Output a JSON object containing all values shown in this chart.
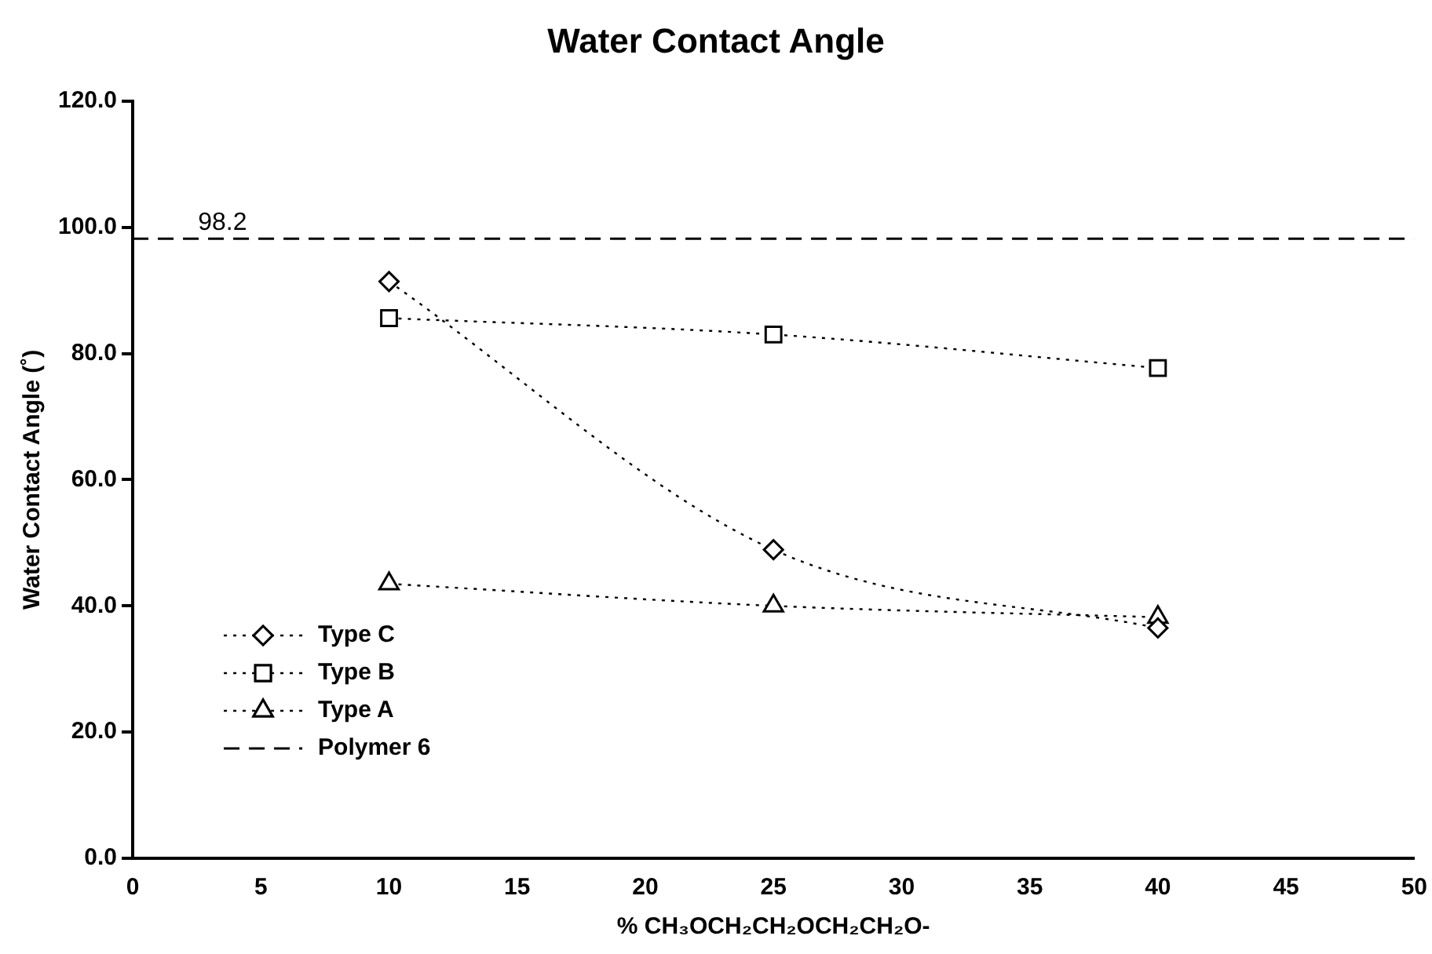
{
  "chart_data": {
    "type": "line",
    "title": "Water Contact Angle",
    "xlabel": "% CH₃OCH₂CH₂OCH₂CH₂O-",
    "ylabel": "Water Contact Angle (˚)",
    "xlim": [
      0,
      50
    ],
    "xticks": [
      0,
      5,
      10,
      15,
      20,
      25,
      30,
      35,
      40,
      45,
      50
    ],
    "ylim": [
      0,
      120
    ],
    "yticks": [
      {
        "value": 0,
        "label": "0.0"
      },
      {
        "value": 20,
        "label": "20.0"
      },
      {
        "value": 40,
        "label": "40.0"
      },
      {
        "value": 60,
        "label": "60.0"
      },
      {
        "value": 80,
        "label": "80.0"
      },
      {
        "value": 100,
        "label": "100.0"
      },
      {
        "value": 120,
        "label": "120.0"
      }
    ],
    "grid": false,
    "legend": "bottom left",
    "series": [
      {
        "name": "Type C",
        "color": "#000000",
        "x": [
          10,
          25,
          40
        ],
        "values": [
          91.4,
          48.9,
          36.5
        ],
        "marker": "diamond",
        "line_style": "dotted"
      },
      {
        "name": "Type B",
        "color": "#000000",
        "x": [
          10,
          25,
          40
        ],
        "values": [
          85.6,
          83.0,
          77.7
        ],
        "marker": "square",
        "line_style": "dotted"
      },
      {
        "name": "Type A",
        "color": "#000000",
        "x": [
          10,
          25,
          40
        ],
        "values": [
          43.5,
          40.0,
          38.2
        ],
        "marker": "triangle",
        "line_style": "dotted"
      },
      {
        "name": "Polymer 6",
        "color": "#000000",
        "x": [
          0,
          50
        ],
        "values": [
          98.2,
          98.2
        ],
        "marker": "none",
        "line_style": "dashed"
      }
    ],
    "annotations": [
      {
        "text": "98.2",
        "x": 3.5,
        "y": 98.2
      }
    ]
  }
}
